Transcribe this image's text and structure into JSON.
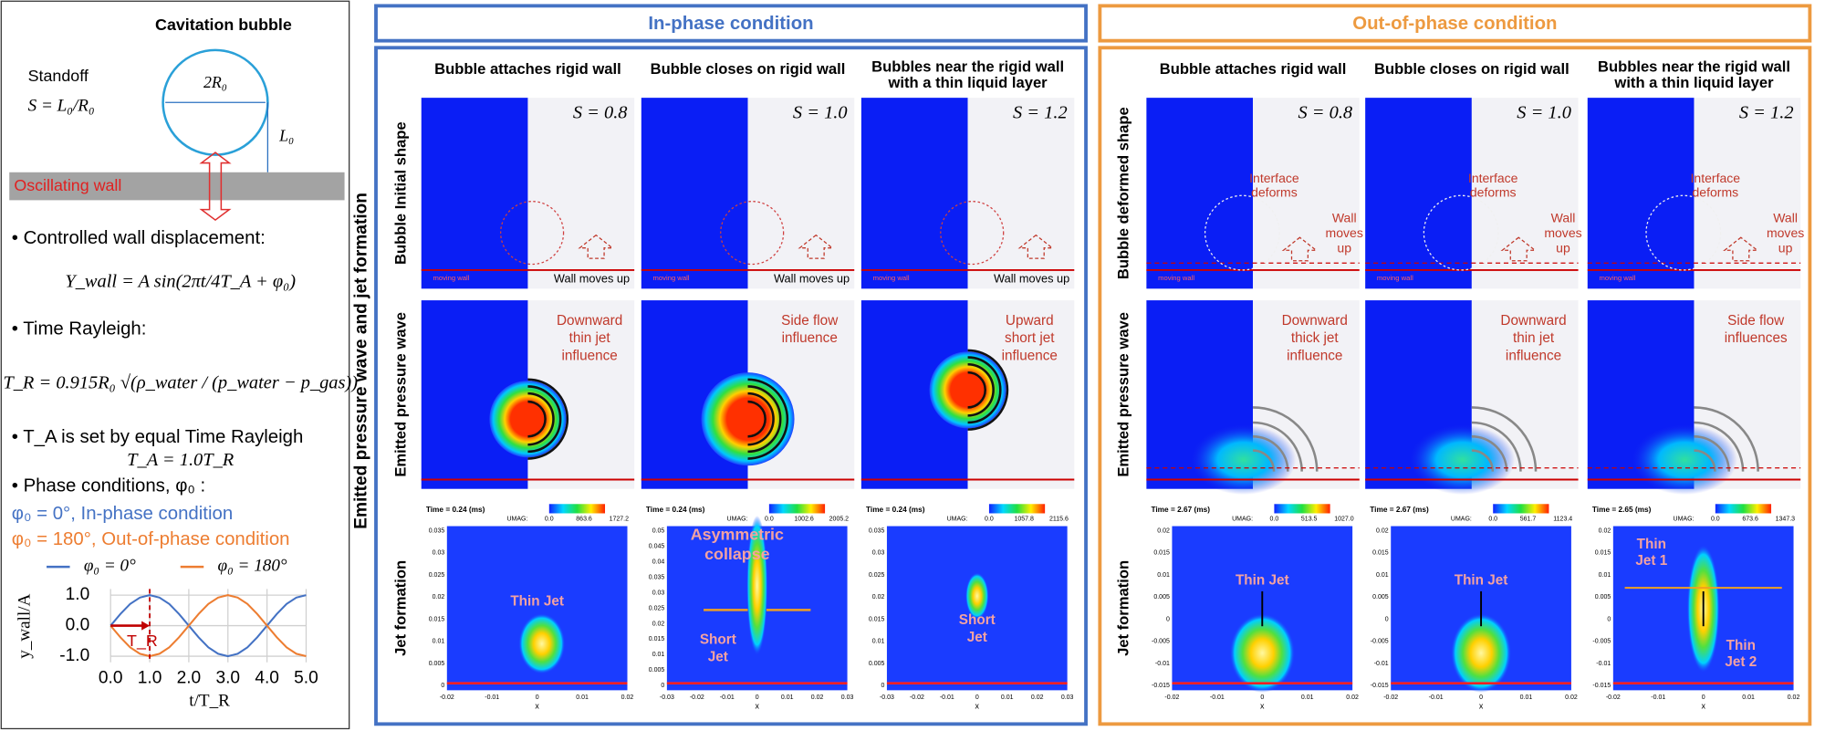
{
  "left_panel": {
    "title": "Cavitation bubble",
    "standoff_label": "Standoff",
    "standoff_formula": "S = L₀/R₀",
    "diameter_label": "2R₀",
    "distance_label": "L₀",
    "wall_label": "Oscillating wall",
    "items": [
      "• Controlled wall displacement:",
      "Y_wall = A sin(2πt/4T_A + φ₀)",
      "• Time Rayleigh:",
      "T_R = 0.915R₀ √(ρ_water / (p_water − p_gas))",
      "• T_A is set by equal Time Rayleigh",
      "T_A = 1.0T_R",
      "• Phase conditions, φ₀ :"
    ],
    "phase_notes": [
      {
        "text": "φ₀ = 0°, In-phase condition",
        "color": "#4472c4"
      },
      {
        "text": "φ₀ = 180°, Out-of-phase condition",
        "color": "#ed7d31"
      }
    ]
  },
  "chart_data": {
    "type": "line",
    "x": [
      0,
      0.25,
      0.5,
      0.75,
      1,
      1.25,
      1.5,
      1.75,
      2,
      2.25,
      2.5,
      2.75,
      3,
      3.25,
      3.5,
      3.75,
      4,
      4.25,
      4.5,
      4.75,
      5
    ],
    "series": [
      {
        "name": "φ₀ = 0°",
        "color": "#4472c4",
        "values": [
          0,
          0.38,
          0.71,
          0.92,
          1,
          0.92,
          0.71,
          0.38,
          0,
          -0.38,
          -0.71,
          -0.92,
          -1,
          -0.92,
          -0.71,
          -0.38,
          0,
          0.38,
          0.71,
          0.92,
          1
        ]
      },
      {
        "name": "φ₀ = 180°",
        "color": "#ed7d31",
        "values": [
          0,
          -0.38,
          -0.71,
          -0.92,
          -1,
          -0.92,
          -0.71,
          -0.38,
          0,
          0.38,
          0.71,
          0.92,
          1,
          0.92,
          0.71,
          0.38,
          0,
          -0.38,
          -0.71,
          -0.92,
          -1
        ]
      }
    ],
    "xlim": [
      0,
      5
    ],
    "ylim": [
      -1.2,
      1.2
    ],
    "xticks": [
      {
        "value": 0,
        "label": "0.0"
      },
      {
        "value": 1,
        "label": "1.0"
      },
      {
        "value": 2,
        "label": "2.0"
      },
      {
        "value": 3,
        "label": "3.0"
      },
      {
        "value": 4,
        "label": "4.0"
      },
      {
        "value": 5,
        "label": "5.0"
      }
    ],
    "yticks": [
      {
        "value": 1,
        "label": "1.0"
      },
      {
        "value": 0,
        "label": "0.0"
      },
      {
        "value": -1,
        "label": "-1.0"
      }
    ],
    "xlabel": "t/T_R",
    "ylabel": "y_wall/A",
    "annotation": {
      "text": "T_R",
      "x": 1
    },
    "grid": true
  },
  "side_label": "Emitted pressure wave and jet formation",
  "common": {
    "moving_wall": "moving wall",
    "umag": "UMAG:",
    "x_axis": "x"
  },
  "panels": [
    {
      "title": "In-phase condition",
      "color": "#4472c4",
      "columns": [
        [
          "Bubble attaches rigid wall"
        ],
        [
          "Bubble closes on rigid wall"
        ],
        [
          "Bubbles near the rigid wall",
          "with a thin liquid layer"
        ]
      ],
      "row_labels": [
        "Bubble Initial shape",
        "Emitted pressure wave",
        "Jet formation"
      ],
      "shape_cells": [
        {
          "standoff": "S = 0.8",
          "notes": [
            [
              "Wall moves up"
            ]
          ]
        },
        {
          "standoff": "S = 1.0",
          "notes": [
            [
              "Wall moves up"
            ]
          ]
        },
        {
          "standoff": "S = 1.2",
          "notes": [
            [
              "Wall moves up"
            ]
          ]
        }
      ],
      "wave_cells": [
        {
          "notes": [
            [
              "Downward",
              "thin jet",
              "influence"
            ]
          ]
        },
        {
          "notes": [
            [
              "Side flow",
              "influence"
            ]
          ]
        },
        {
          "notes": [
            [
              "Upward",
              "short jet",
              "influence"
            ]
          ]
        }
      ],
      "jet_cells": [
        {
          "time": "Time = 0.24 (ms)",
          "colorbar": [
            "0.0",
            "863.6",
            "1727.2"
          ],
          "notes": [
            [
              "Thin Jet"
            ]
          ],
          "yticks": [
            "0.035",
            "0.03",
            "0.025",
            "0.02",
            "0.015",
            "0.01",
            "0.005",
            "0"
          ],
          "xticks": [
            "-0.02",
            "-0.01",
            "0",
            "0.01",
            "0.02"
          ]
        },
        {
          "time": "Time = 0.24 (ms)",
          "colorbar": [
            "0.0",
            "1002.6",
            "2005.2"
          ],
          "notes": [
            [
              "Asymmetric",
              "collapse"
            ],
            [
              "Short",
              "Jet"
            ]
          ],
          "yticks": [
            "0.05",
            "0.045",
            "0.04",
            "0.035",
            "0.03",
            "0.025",
            "0.02",
            "0.015",
            "0.01",
            "0.005",
            "0"
          ],
          "xticks": [
            "-0.03",
            "-0.02",
            "-0.01",
            "0",
            "0.01",
            "0.02",
            "0.03"
          ]
        },
        {
          "time": "Time = 0.24 (ms)",
          "colorbar": [
            "0.0",
            "1057.8",
            "2115.6"
          ],
          "notes": [
            [
              "Short",
              "Jet"
            ]
          ],
          "yticks": [
            "0.035",
            "0.03",
            "0.025",
            "0.02",
            "0.015",
            "0.01",
            "0.005",
            "0"
          ],
          "xticks": [
            "-0.03",
            "-0.02",
            "-0.01",
            "0",
            "0.01",
            "0.02",
            "0.03"
          ]
        }
      ]
    },
    {
      "title": "Out-of-phase condition",
      "color": "#ed9a40",
      "columns": [
        [
          "Bubble attaches rigid wall"
        ],
        [
          "Bubble closes on rigid wall"
        ],
        [
          "Bubbles near the rigid wall",
          "with a thin liquid layer"
        ]
      ],
      "row_labels": [
        "Bubble deformed shape",
        "Emitted pressure wave",
        "Jet formation"
      ],
      "shape_cells": [
        {
          "standoff": "S = 0.8",
          "notes": [
            [
              "Interface",
              "deforms"
            ],
            [
              "Wall",
              "moves",
              "up"
            ]
          ]
        },
        {
          "standoff": "S = 1.0",
          "notes": [
            [
              "Interface",
              "deforms"
            ],
            [
              "Wall",
              "moves",
              "up"
            ]
          ]
        },
        {
          "standoff": "S = 1.2",
          "notes": [
            [
              "Interface",
              "deforms"
            ],
            [
              "Wall",
              "moves",
              "up"
            ]
          ]
        }
      ],
      "wave_cells": [
        {
          "notes": [
            [
              "Downward",
              "thick jet",
              "influence"
            ]
          ]
        },
        {
          "notes": [
            [
              "Downward",
              "thin jet",
              "influence"
            ]
          ]
        },
        {
          "notes": [
            [
              "Side flow",
              "influences"
            ]
          ]
        }
      ],
      "jet_cells": [
        {
          "time": "Time = 2.67 (ms)",
          "colorbar": [
            "0.0",
            "513.5",
            "1027.0"
          ],
          "notes": [
            [
              "Thin Jet"
            ]
          ],
          "yticks": [
            "0.02",
            "0.015",
            "0.01",
            "0.005",
            "0",
            "-0.005",
            "-0.01",
            "-0.015"
          ],
          "xticks": [
            "-0.02",
            "-0.01",
            "0",
            "0.01",
            "0.02"
          ]
        },
        {
          "time": "Time = 2.67 (ms)",
          "colorbar": [
            "0.0",
            "561.7",
            "1123.4"
          ],
          "notes": [
            [
              "Thin Jet"
            ]
          ],
          "yticks": [
            "0.02",
            "0.015",
            "0.01",
            "0.005",
            "0",
            "-0.005",
            "-0.01",
            "-0.015"
          ],
          "xticks": [
            "-0.02",
            "-0.01",
            "0",
            "0.01",
            "0.02"
          ]
        },
        {
          "time": "Time = 2.65 (ms)",
          "colorbar": [
            "0.0",
            "673.6",
            "1347.3"
          ],
          "notes": [
            [
              "Thin",
              "Jet 1"
            ],
            [
              "Thin",
              "Jet 2"
            ]
          ],
          "yticks": [
            "0.02",
            "0.015",
            "0.01",
            "0.005",
            "0",
            "-0.005",
            "-0.01",
            "-0.015"
          ],
          "xticks": [
            "-0.02",
            "-0.01",
            "0",
            "0.01",
            "0.02"
          ]
        }
      ]
    }
  ]
}
